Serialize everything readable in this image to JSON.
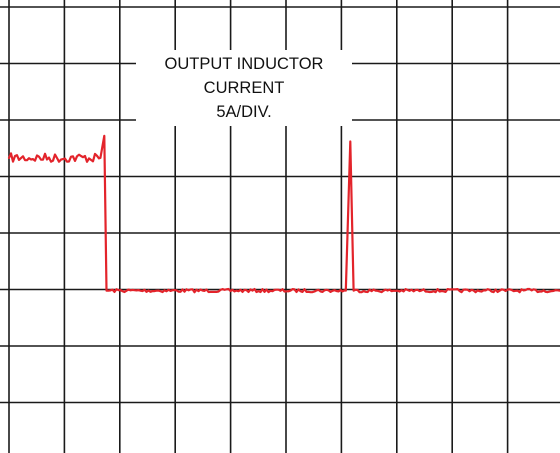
{
  "chart_data": {
    "type": "line",
    "title": "",
    "xlabel": "",
    "ylabel": "",
    "grid": true,
    "x_divisions": 10,
    "y_divisions": 8,
    "xlim": [
      0,
      10
    ],
    "ylim": [
      -4,
      4
    ],
    "annotation_lines": [
      "OUTPUT INDUCTOR",
      "CURRENT",
      "5A/DIV."
    ],
    "series": [
      {
        "color": "#e3242b",
        "points": [
          {
            "x": 0.0,
            "y": 1.33
          },
          {
            "x": 1.65,
            "y": 1.33
          },
          {
            "x": 1.72,
            "y": 1.72
          },
          {
            "x": 1.76,
            "y": -1.02
          },
          {
            "x": 6.08,
            "y": -1.02
          },
          {
            "x": 6.16,
            "y": 1.62
          },
          {
            "x": 6.22,
            "y": -1.02
          },
          {
            "x": 10.0,
            "y": -1.02
          }
        ]
      }
    ]
  }
}
